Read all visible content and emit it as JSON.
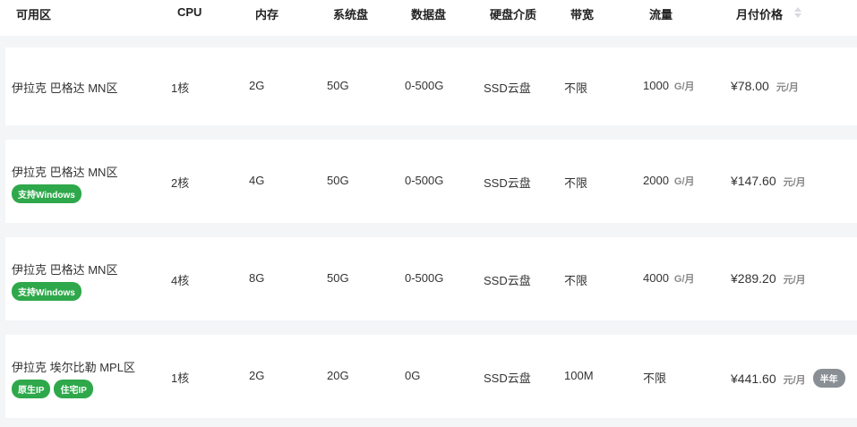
{
  "headers": [
    "可用区",
    "CPU",
    "内存",
    "系统盘",
    "数据盘",
    "硬盘介质",
    "带宽",
    "流量",
    "月付价格"
  ],
  "rows": [
    {
      "zone": "伊拉克 巴格达 MN区",
      "tags": [],
      "cpu": "1核",
      "mem": "2G",
      "sys": "50G",
      "data": "0-500G",
      "media": "SSD云盘",
      "bw": "不限",
      "traffic": "1000",
      "traffic_unit": "G/月",
      "price": "¥78.00",
      "price_unit": "元/月",
      "badge": ""
    },
    {
      "zone": "伊拉克 巴格达 MN区",
      "tags": [
        "支持Windows"
      ],
      "cpu": "2核",
      "mem": "4G",
      "sys": "50G",
      "data": "0-500G",
      "media": "SSD云盘",
      "bw": "不限",
      "traffic": "2000",
      "traffic_unit": "G/月",
      "price": "¥147.60",
      "price_unit": "元/月",
      "badge": ""
    },
    {
      "zone": "伊拉克 巴格达 MN区",
      "tags": [
        "支持Windows"
      ],
      "cpu": "4核",
      "mem": "8G",
      "sys": "50G",
      "data": "0-500G",
      "media": "SSD云盘",
      "bw": "不限",
      "traffic": "4000",
      "traffic_unit": "G/月",
      "price": "¥289.20",
      "price_unit": "元/月",
      "badge": ""
    },
    {
      "zone": "伊拉克 埃尔比勒 MPL区",
      "tags": [
        "原生IP",
        "住宅IP"
      ],
      "cpu": "1核",
      "mem": "2G",
      "sys": "20G",
      "data": "0G",
      "media": "SSD云盘",
      "bw": "100M",
      "traffic": "不限",
      "traffic_unit": "",
      "price": "¥441.60",
      "price_unit": "元/月",
      "badge": "半年"
    }
  ],
  "colors": {
    "tag": "#2ea84a",
    "badge": "#8a8e95"
  }
}
